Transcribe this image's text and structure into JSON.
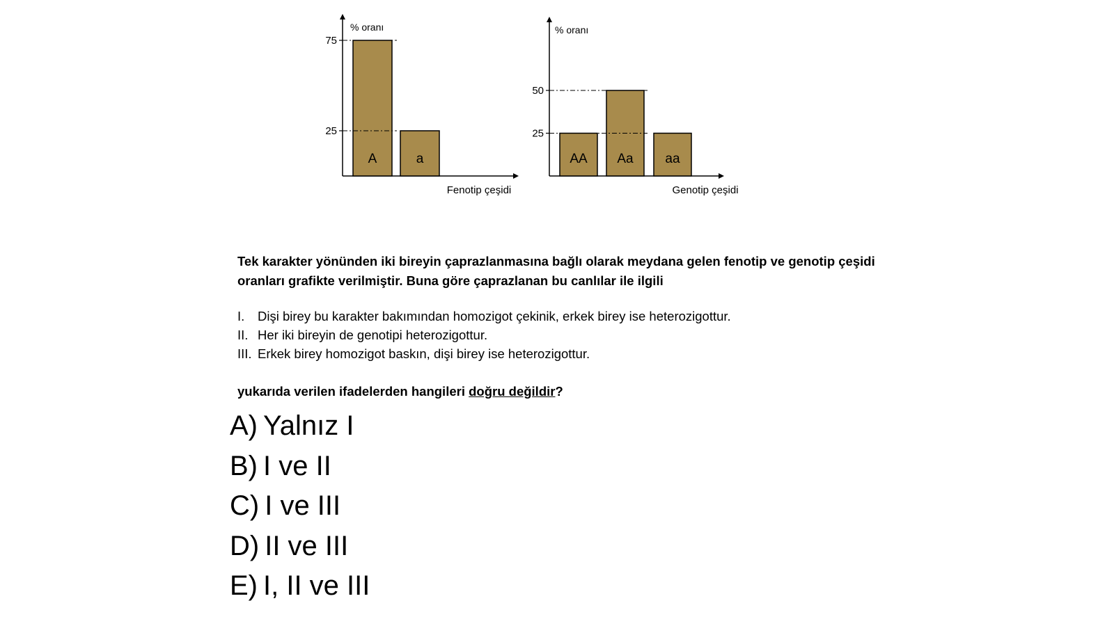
{
  "chart_data": [
    {
      "type": "bar",
      "ylabel": "% oranı",
      "xlabel": "Fenotip çeşidi",
      "categories": [
        "A",
        "a"
      ],
      "values": [
        75,
        25
      ],
      "yticks": [
        75,
        25
      ],
      "bar_color": "#a88b4c"
    },
    {
      "type": "bar",
      "ylabel": "% oranı",
      "xlabel": "Genotip çeşidi",
      "categories": [
        "AA",
        "Aa",
        "aa"
      ],
      "values": [
        25,
        50,
        25
      ],
      "yticks": [
        50,
        25
      ],
      "bar_color": "#a88b4c"
    }
  ],
  "question": {
    "intro": "Tek karakter yönünden iki bireyin çaprazlanmasına bağlı olarak meydana gelen fenotip ve genotip çeşidi oranları grafikte verilmiştir. Buna göre çaprazlanan bu canlılar ile ilgili",
    "statements": [
      {
        "num": "I.",
        "text": "Dişi birey bu karakter bakımından homozigot çekinik, erkek birey ise heterozigottur."
      },
      {
        "num": "II.",
        "text": "Her iki bireyin de genotipi heterozigottur."
      },
      {
        "num": "III.",
        "text": "Erkek birey homozigot baskın, dişi birey ise heterozigottur."
      }
    ],
    "closing_pre": "yukarıda verilen ifadelerden hangileri ",
    "closing_emph": "doğru değildir",
    "closing_post": "?"
  },
  "options": [
    {
      "letter": "A)",
      "text": "Yalnız I"
    },
    {
      "letter": "B)",
      "text": "I ve II"
    },
    {
      "letter": "C)",
      "text": "I ve III"
    },
    {
      "letter": "D)",
      "text": "II ve III"
    },
    {
      "letter": "E)",
      "text": "I, II ve III"
    }
  ]
}
